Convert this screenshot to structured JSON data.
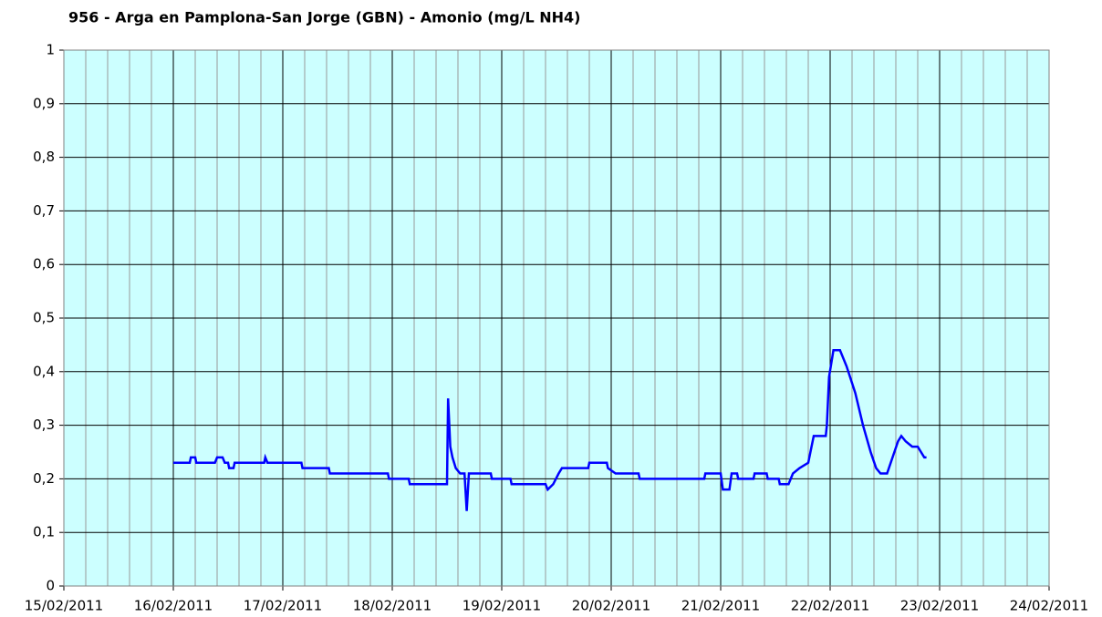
{
  "chart_data": {
    "type": "line",
    "title": "956 - Arga en Pamplona-San Jorge (GBN) - Amonio (mg/L NH4)",
    "xlim": [
      40589,
      40598
    ],
    "xticks": [
      {
        "value": 40589,
        "label": "15/02/2011"
      },
      {
        "value": 40590,
        "label": "16/02/2011"
      },
      {
        "value": 40591,
        "label": "17/02/2011"
      },
      {
        "value": 40592,
        "label": "18/02/2011"
      },
      {
        "value": 40593,
        "label": "19/02/2011"
      },
      {
        "value": 40594,
        "label": "20/02/2011"
      },
      {
        "value": 40595,
        "label": "21/02/2011"
      },
      {
        "value": 40596,
        "label": "22/02/2011"
      },
      {
        "value": 40597,
        "label": "23/02/2011"
      },
      {
        "value": 40598,
        "label": "24/02/2011"
      }
    ],
    "ylim": [
      0,
      1
    ],
    "yticks": [
      0,
      {
        "value": 0.1,
        "label": "0,1"
      },
      {
        "value": 0.2,
        "label": "0,2"
      },
      {
        "value": 0.3,
        "label": "0,3"
      },
      {
        "value": 0.4,
        "label": "0,4"
      },
      {
        "value": 0.5,
        "label": "0,5"
      },
      {
        "value": 0.6,
        "label": "0,6"
      },
      {
        "value": 0.7,
        "label": "0,7"
      },
      {
        "value": 0.8,
        "label": "0,8"
      },
      {
        "value": 0.9,
        "label": "0,9"
      },
      1
    ],
    "grid": true,
    "background": "#ccffff",
    "series": [
      {
        "color": "#0000ff",
        "x": [
          40590,
          40590.15,
          40590.16,
          40590.2,
          40590.21,
          40590.38,
          40590.4,
          40590.45,
          40590.47,
          40590.5,
          40590.51,
          40590.55,
          40590.56,
          40590.83,
          40590.84,
          40590.86,
          40591.17,
          40591.18,
          40591.42,
          40591.43,
          40591.96,
          40591.97,
          40592.15,
          40592.16,
          40592.5,
          40592.51,
          40592.53,
          40592.55,
          40592.58,
          40592.62,
          40592.66,
          40592.68,
          40592.7,
          40592.9,
          40592.91,
          40593.08,
          40593.09,
          40593.4,
          40593.42,
          40593.47,
          40593.52,
          40593.55,
          40593.79,
          40593.8,
          40593.96,
          40593.97,
          40594.04,
          40594.25,
          40594.26,
          40594.85,
          40594.86,
          40595,
          40595.02,
          40595.08,
          40595.1,
          40595.15,
          40595.16,
          40595.3,
          40595.31,
          40595.42,
          40595.43,
          40595.53,
          40595.54,
          40595.62,
          40595.66,
          40595.72,
          40595.8,
          40595.85,
          40595.96,
          40595.97,
          40595.99,
          40596.03,
          40596.09,
          40596.15,
          40596.23,
          40596.3,
          40596.37,
          40596.42,
          40596.46,
          40596.52,
          40596.57,
          40596.62,
          40596.65,
          40596.69,
          40596.75,
          40596.8,
          40596.83,
          40596.86,
          40596.88
        ],
        "values": [
          0.23,
          0.23,
          0.24,
          0.24,
          0.23,
          0.23,
          0.24,
          0.24,
          0.23,
          0.23,
          0.22,
          0.22,
          0.23,
          0.23,
          0.24,
          0.23,
          0.23,
          0.22,
          0.22,
          0.21,
          0.21,
          0.2,
          0.2,
          0.19,
          0.19,
          0.35,
          0.26,
          0.24,
          0.22,
          0.21,
          0.21,
          0.14,
          0.21,
          0.21,
          0.2,
          0.2,
          0.19,
          0.19,
          0.18,
          0.19,
          0.21,
          0.22,
          0.22,
          0.23,
          0.23,
          0.22,
          0.21,
          0.21,
          0.2,
          0.2,
          0.21,
          0.21,
          0.18,
          0.18,
          0.21,
          0.21,
          0.2,
          0.2,
          0.21,
          0.21,
          0.2,
          0.2,
          0.19,
          0.19,
          0.21,
          0.22,
          0.23,
          0.28,
          0.28,
          0.3,
          0.39,
          0.44,
          0.44,
          0.41,
          0.36,
          0.3,
          0.25,
          0.22,
          0.21,
          0.21,
          0.24,
          0.27,
          0.28,
          0.27,
          0.26,
          0.26,
          0.25,
          0.24,
          0.24
        ]
      }
    ]
  }
}
